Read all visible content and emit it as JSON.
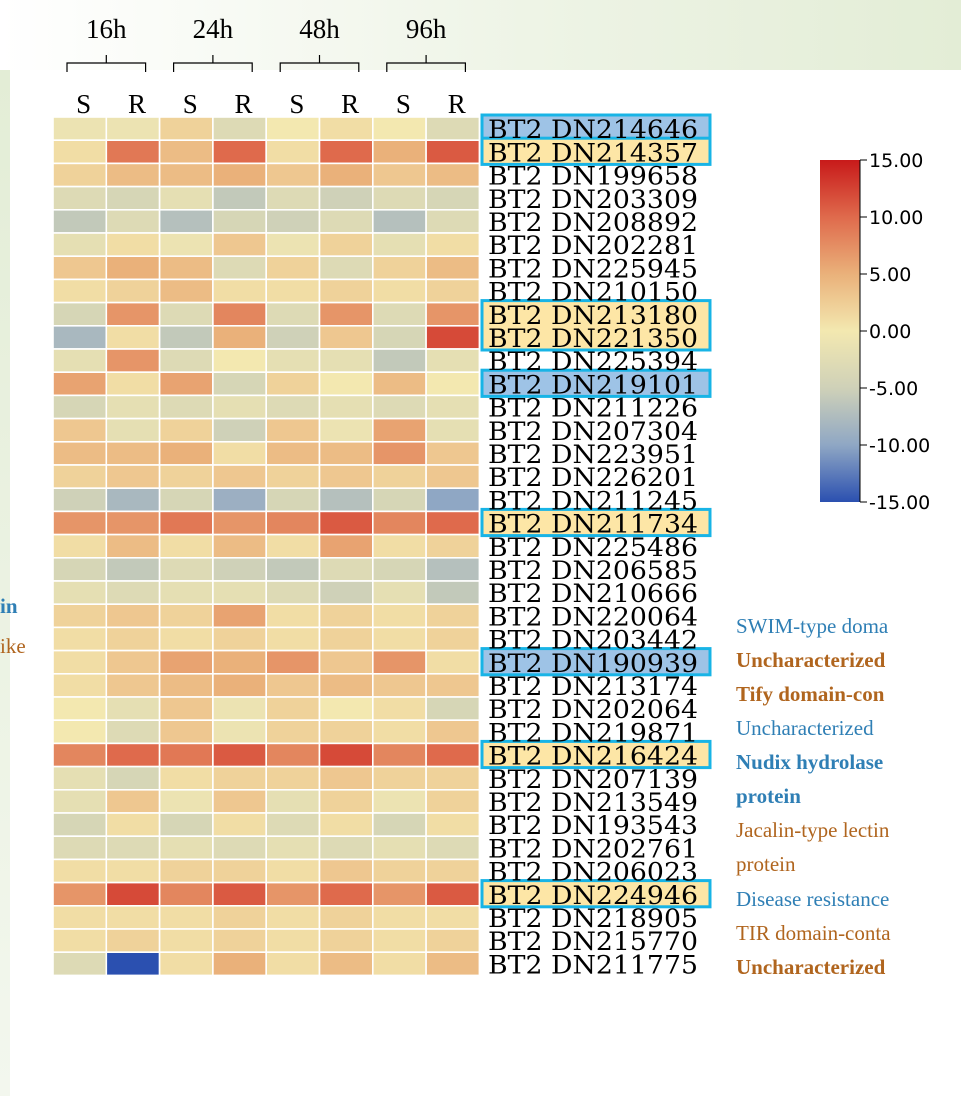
{
  "chart_data": {
    "type": "heatmap",
    "time_points": [
      "16h",
      "24h",
      "48h",
      "96h"
    ],
    "columns": [
      "S",
      "R",
      "S",
      "R",
      "S",
      "R",
      "S",
      "R"
    ],
    "rows": [
      {
        "gene": "BT2_DN214646",
        "display": "BT2 DN214646",
        "highlight": "blue",
        "values": [
          -1,
          -1,
          2,
          -3,
          0,
          1,
          0,
          -3
        ]
      },
      {
        "gene": "BT2_DN214357",
        "display": "BT2 DN214357",
        "highlight": "orange",
        "values": [
          1,
          9,
          4,
          10,
          1,
          10,
          5,
          11
        ]
      },
      {
        "gene": "BT2_DN199658",
        "display": "BT2 DN199658",
        "highlight": "",
        "values": [
          2,
          4,
          4,
          5,
          3,
          5,
          3,
          4
        ]
      },
      {
        "gene": "BT2_DN203309",
        "display": "BT2 DN203309",
        "highlight": "",
        "values": [
          -3,
          -4,
          -2,
          -6,
          -3,
          -5,
          -3,
          -4
        ]
      },
      {
        "gene": "BT2_DN208892",
        "display": "BT2 DN208892",
        "highlight": "",
        "values": [
          -6,
          -3,
          -7,
          -4,
          -5,
          -3,
          -7,
          -3
        ]
      },
      {
        "gene": "BT2_DN202281",
        "display": "BT2 DN202281",
        "highlight": "",
        "values": [
          -2,
          1,
          -1,
          3,
          -1,
          2,
          -2,
          1
        ]
      },
      {
        "gene": "BT2_DN225945",
        "display": "BT2 DN225945",
        "highlight": "",
        "values": [
          3,
          5,
          4,
          -3,
          2,
          -3,
          2,
          4
        ]
      },
      {
        "gene": "BT2_DN210150",
        "display": "BT2 DN210150",
        "highlight": "",
        "values": [
          1,
          2,
          4,
          1,
          1,
          2,
          1,
          2
        ]
      },
      {
        "gene": "BT2_DN213180",
        "display": "BT2 DN213180",
        "highlight": "orange",
        "values": [
          -4,
          7,
          -3,
          8,
          -3,
          7,
          -3,
          7
        ]
      },
      {
        "gene": "BT2_DN221350",
        "display": "BT2 DN221350",
        "highlight": "orange",
        "values": [
          -8,
          1,
          -6,
          5,
          -5,
          3,
          -4,
          12
        ]
      },
      {
        "gene": "BT2_DN225394",
        "display": "BT2 DN225394",
        "highlight": "",
        "values": [
          -2,
          7,
          -3,
          0,
          -2,
          -2,
          -6,
          -2
        ]
      },
      {
        "gene": "BT2_DN219101",
        "display": "BT2 DN219101",
        "highlight": "blue",
        "values": [
          6,
          1,
          6,
          -4,
          2,
          0,
          4,
          0
        ]
      },
      {
        "gene": "BT2_DN211226",
        "display": "BT2 DN211226",
        "highlight": "",
        "values": [
          -4,
          -2,
          -3,
          -2,
          -3,
          -2,
          -3,
          -2
        ]
      },
      {
        "gene": "BT2_DN207304",
        "display": "BT2 DN207304",
        "highlight": "",
        "values": [
          3,
          -2,
          2,
          -5,
          3,
          -1,
          6,
          -2
        ]
      },
      {
        "gene": "BT2_DN223951",
        "display": "BT2 DN223951",
        "highlight": "",
        "values": [
          4,
          4,
          5,
          1,
          4,
          4,
          7,
          3
        ]
      },
      {
        "gene": "BT2_DN226201",
        "display": "BT2 DN226201",
        "highlight": "",
        "values": [
          2,
          3,
          2,
          3,
          2,
          3,
          2,
          3
        ]
      },
      {
        "gene": "BT2_DN211245",
        "display": "BT2 DN211245",
        "highlight": "",
        "values": [
          -5,
          -8,
          -4,
          -9,
          -4,
          -7,
          -4,
          -10
        ]
      },
      {
        "gene": "BT2_DN211734",
        "display": "BT2 DN211734",
        "highlight": "orange",
        "values": [
          7,
          7,
          9,
          7,
          8,
          11,
          8,
          10
        ]
      },
      {
        "gene": "BT2_DN225486",
        "display": "BT2 DN225486",
        "highlight": "",
        "values": [
          1,
          4,
          1,
          4,
          1,
          6,
          1,
          2
        ]
      },
      {
        "gene": "BT2_DN206585",
        "display": "BT2 DN206585",
        "highlight": "",
        "values": [
          -4,
          -6,
          -3,
          -5,
          -6,
          -3,
          -4,
          -7
        ]
      },
      {
        "gene": "BT2_DN210666",
        "display": "BT2 DN210666",
        "highlight": "",
        "values": [
          -2,
          -3,
          -2,
          -2,
          -3,
          -5,
          -2,
          -6
        ]
      },
      {
        "gene": "BT2_DN220064",
        "display": "BT2 DN220064",
        "highlight": "",
        "values": [
          2,
          3,
          2,
          6,
          1,
          2,
          1,
          2
        ]
      },
      {
        "gene": "BT2_DN203442",
        "display": "BT2 DN203442",
        "highlight": "",
        "values": [
          1,
          2,
          1,
          2,
          1,
          2,
          1,
          2
        ]
      },
      {
        "gene": "BT2_DN190939",
        "display": "BT2 DN190939",
        "highlight": "blue",
        "values": [
          1,
          3,
          6,
          5,
          7,
          3,
          7,
          1
        ]
      },
      {
        "gene": "BT2_DN213174",
        "display": "BT2 DN213174",
        "highlight": "",
        "values": [
          1,
          3,
          4,
          5,
          3,
          4,
          3,
          3
        ]
      },
      {
        "gene": "BT2_DN202064",
        "display": "BT2 DN202064",
        "highlight": "",
        "values": [
          0,
          -2,
          3,
          -1,
          2,
          0,
          1,
          -4
        ]
      },
      {
        "gene": "BT2_DN219871",
        "display": "BT2 DN219871",
        "highlight": "",
        "values": [
          0,
          -3,
          3,
          -1,
          2,
          2,
          1,
          3
        ]
      },
      {
        "gene": "BT2_DN216424",
        "display": "BT2 DN216424",
        "highlight": "orange",
        "values": [
          8,
          10,
          9,
          11,
          8,
          12,
          8,
          10
        ]
      },
      {
        "gene": "BT2_DN207139",
        "display": "BT2 DN207139",
        "highlight": "",
        "values": [
          -2,
          -4,
          1,
          2,
          2,
          3,
          2,
          2
        ]
      },
      {
        "gene": "BT2_DN213549",
        "display": "BT2 DN213549",
        "highlight": "",
        "values": [
          -2,
          3,
          -1,
          3,
          -2,
          2,
          -1,
          2
        ]
      },
      {
        "gene": "BT2_DN193543",
        "display": "BT2 DN193543",
        "highlight": "",
        "values": [
          -4,
          1,
          -4,
          1,
          -3,
          1,
          -4,
          1
        ]
      },
      {
        "gene": "BT2_DN202761",
        "display": "BT2 DN202761",
        "highlight": "",
        "values": [
          -3,
          -3,
          -2,
          -3,
          -2,
          -3,
          -2,
          -3
        ]
      },
      {
        "gene": "BT2_DN206023",
        "display": "BT2 DN206023",
        "highlight": "",
        "values": [
          1,
          1,
          2,
          2,
          1,
          3,
          2,
          2
        ]
      },
      {
        "gene": "BT2_DN224946",
        "display": "BT2 DN224946",
        "highlight": "orange",
        "values": [
          7,
          12,
          8,
          11,
          7,
          10,
          7,
          11
        ]
      },
      {
        "gene": "BT2_DN218905",
        "display": "BT2 DN218905",
        "highlight": "",
        "values": [
          1,
          1,
          1,
          2,
          1,
          2,
          1,
          1
        ]
      },
      {
        "gene": "BT2_DN215770",
        "display": "BT2 DN215770",
        "highlight": "",
        "values": [
          1,
          2,
          1,
          2,
          1,
          2,
          1,
          2
        ]
      },
      {
        "gene": "BT2_DN211775",
        "display": "BT2 DN211775",
        "highlight": "",
        "values": [
          -3,
          -15,
          1,
          5,
          1,
          4,
          1,
          4
        ]
      }
    ],
    "color_scale": {
      "min": -15,
      "max": 15,
      "ticks": [
        "15.00",
        "10.00",
        "5.00",
        "0.00",
        "-5.00",
        "-10.00",
        "-15.00"
      ],
      "colors": [
        "#2b50b0",
        "#8fa7c4",
        "#cfd1b8",
        "#f3e8b0",
        "#eab17a",
        "#df6a4c",
        "#c81a1a"
      ]
    }
  },
  "annotations_left": [
    {
      "text": "in",
      "style": "blue bold"
    },
    {
      "text": "ike",
      "style": "brown"
    }
  ],
  "annotations_right": [
    {
      "text": "SWIM-type doma",
      "style": "blue"
    },
    {
      "text": "Uncharacterized",
      "style": "brown bold"
    },
    {
      "text": "Tify domain-con",
      "style": "brown bold"
    },
    {
      "text": "Uncharacterized",
      "style": "blue"
    },
    {
      "text": "Nudix hydrolase",
      "style": "blue bold"
    },
    {
      "text": "protein",
      "style": "blue bold"
    },
    {
      "text": "Jacalin-type lectin",
      "style": "brown"
    },
    {
      "text": "protein",
      "style": "brown"
    },
    {
      "text": "Disease resistance",
      "style": "blue"
    },
    {
      "text": "TIR domain-conta",
      "style": "brown"
    },
    {
      "text": "Uncharacterized",
      "style": "brown bold"
    }
  ],
  "colors": {
    "highlight_blue_fill": "#9ec3e6",
    "highlight_orange_fill": "#fde6a6",
    "highlight_border": "#18b4e6",
    "bracket": "#000000"
  }
}
